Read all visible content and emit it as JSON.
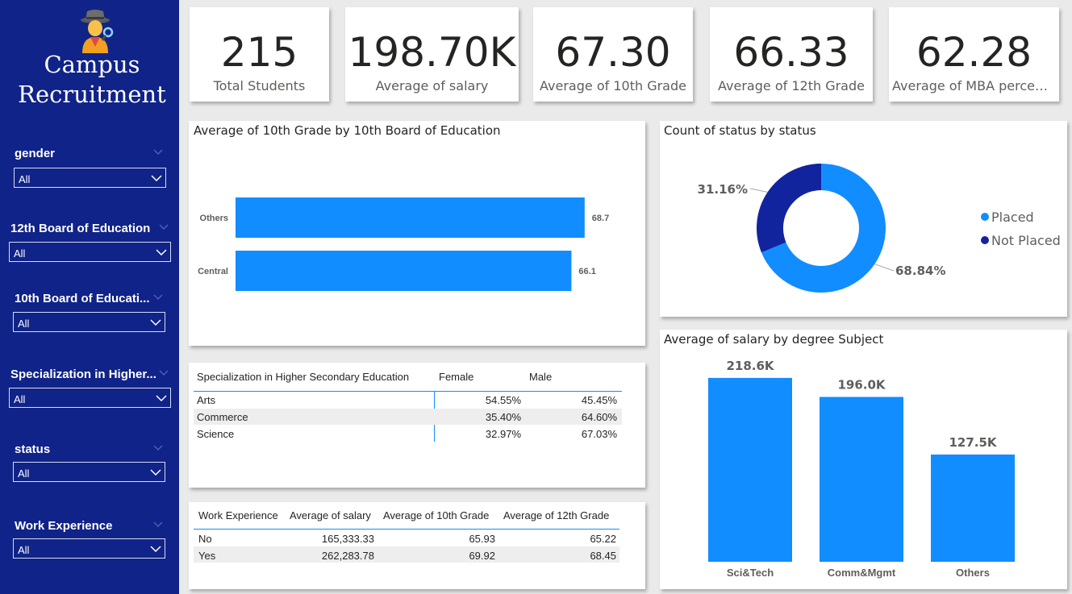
{
  "app": {
    "title_line1": "Campus",
    "title_line2": "Recruitment",
    "logo_icon": "detective-emoji"
  },
  "filters": [
    {
      "label": "gender",
      "value": "All"
    },
    {
      "label": "12th Board of Education",
      "value": "All"
    },
    {
      "label": "10th Board of Educati...",
      "value": "All"
    },
    {
      "label": "Specialization in Higher...",
      "value": "All"
    },
    {
      "label": "status",
      "value": "All"
    },
    {
      "label": "Work Experience",
      "value": "All"
    }
  ],
  "kpis": [
    {
      "value": "215",
      "label": "Total Students"
    },
    {
      "value": "198.70K",
      "label": "Average of salary"
    },
    {
      "value": "67.30",
      "label": "Average of 10th Grade"
    },
    {
      "value": "66.33",
      "label": "Average of 12th Grade"
    },
    {
      "value": "62.28",
      "label": "Average of MBA percenta..."
    }
  ],
  "colors": {
    "sidebar": "#102388",
    "bar": "#118dff",
    "dark_blue": "#12239e"
  },
  "bar_chart": {
    "title": "Average of 10th Grade by 10th Board of Education"
  },
  "donut_chart": {
    "title": "Count of status by status",
    "legend": [
      "Placed",
      "Not Placed"
    ]
  },
  "column_chart": {
    "title": "Average of salary by degree Subject"
  },
  "specialization_table": {
    "headers": [
      "Specialization in Higher Secondary Education",
      "Female",
      "Male"
    ],
    "rows": [
      [
        "Arts",
        "54.55%",
        "45.45%"
      ],
      [
        "Commerce",
        "35.40%",
        "64.60%"
      ],
      [
        "Science",
        "32.97%",
        "67.03%"
      ]
    ]
  },
  "work_table": {
    "headers": [
      "Work Experience",
      "Average of salary",
      "Average of 10th Grade",
      "Average of 12th Grade"
    ],
    "rows": [
      [
        "No",
        "165,333.33",
        "65.93",
        "65.22"
      ],
      [
        "Yes",
        "262,283.78",
        "69.92",
        "68.45"
      ]
    ]
  },
  "chart_data": [
    {
      "type": "bar",
      "title": "Average of 10th Grade by 10th Board of Education",
      "categories": [
        "Others",
        "Central"
      ],
      "values": [
        68.7,
        66.1
      ],
      "data_labels": [
        "68.7",
        "66.1"
      ],
      "xlim": [
        0,
        70
      ]
    },
    {
      "type": "pie",
      "title": "Count of status by status",
      "labels": [
        "Placed",
        "Not Placed"
      ],
      "values": [
        68.84,
        31.16
      ],
      "data_labels": [
        "68.84%",
        "31.16%"
      ],
      "colors": [
        "#118dff",
        "#12239e"
      ],
      "legend": "right"
    },
    {
      "type": "bar",
      "title": "Average of salary by degree Subject",
      "categories": [
        "Sci&Tech",
        "Comm&Mgmt",
        "Others"
      ],
      "values": [
        218600,
        196000,
        127500
      ],
      "data_labels": [
        "218.6K",
        "196.0K",
        "127.5K"
      ],
      "ylim": [
        0,
        230000
      ]
    }
  ]
}
